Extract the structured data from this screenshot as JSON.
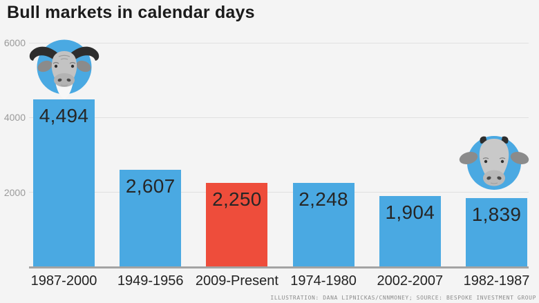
{
  "header": {
    "title": "Bull markets in calendar days"
  },
  "footer": {
    "credit": "ILLUSTRATION: DANA LIPNICKAS/CNNMONEY; SOURCE: BESPOKE INVESTMENT GROUP"
  },
  "colors": {
    "background": "#f4f4f4",
    "bar_blue": "#4aa9e2",
    "bar_red": "#ee4d3b",
    "gridline": "#e0e0e0",
    "axis_line": "#a3a3a3",
    "title_text": "#1b1b1b",
    "value_text": "#262626",
    "tick_text": "#9a9a9a",
    "credit_text": "#8b8b8b"
  },
  "icons": {
    "left": "bull-head-big-horns-icon",
    "right": "bull-face-small-horns-icon"
  },
  "chart_data": {
    "type": "bar",
    "title": "Bull markets in calendar days",
    "categories": [
      "1987-2000",
      "1949-1956",
      "2009-Present",
      "1974-1980",
      "2002-2007",
      "1982-1987"
    ],
    "values": [
      4494,
      2607,
      2250,
      2248,
      1904,
      1839
    ],
    "value_labels": [
      "4,494",
      "2,607",
      "2,250",
      "2,248",
      "1,904",
      "1,839"
    ],
    "bar_colors": [
      "#4aa9e2",
      "#4aa9e2",
      "#ee4d3b",
      "#4aa9e2",
      "#4aa9e2",
      "#4aa9e2"
    ],
    "highlight_index": 2,
    "xlabel": "",
    "ylabel": "",
    "ylim": [
      0,
      6000
    ],
    "yticks": [
      2000,
      4000,
      6000
    ],
    "ytick_labels": [
      "2000",
      "4000",
      "6000"
    ],
    "grid": true,
    "legend": "none",
    "annotations": [
      "bull illustration above 1987-2000 bar",
      "bull illustration above 1982-1987 bar"
    ]
  }
}
